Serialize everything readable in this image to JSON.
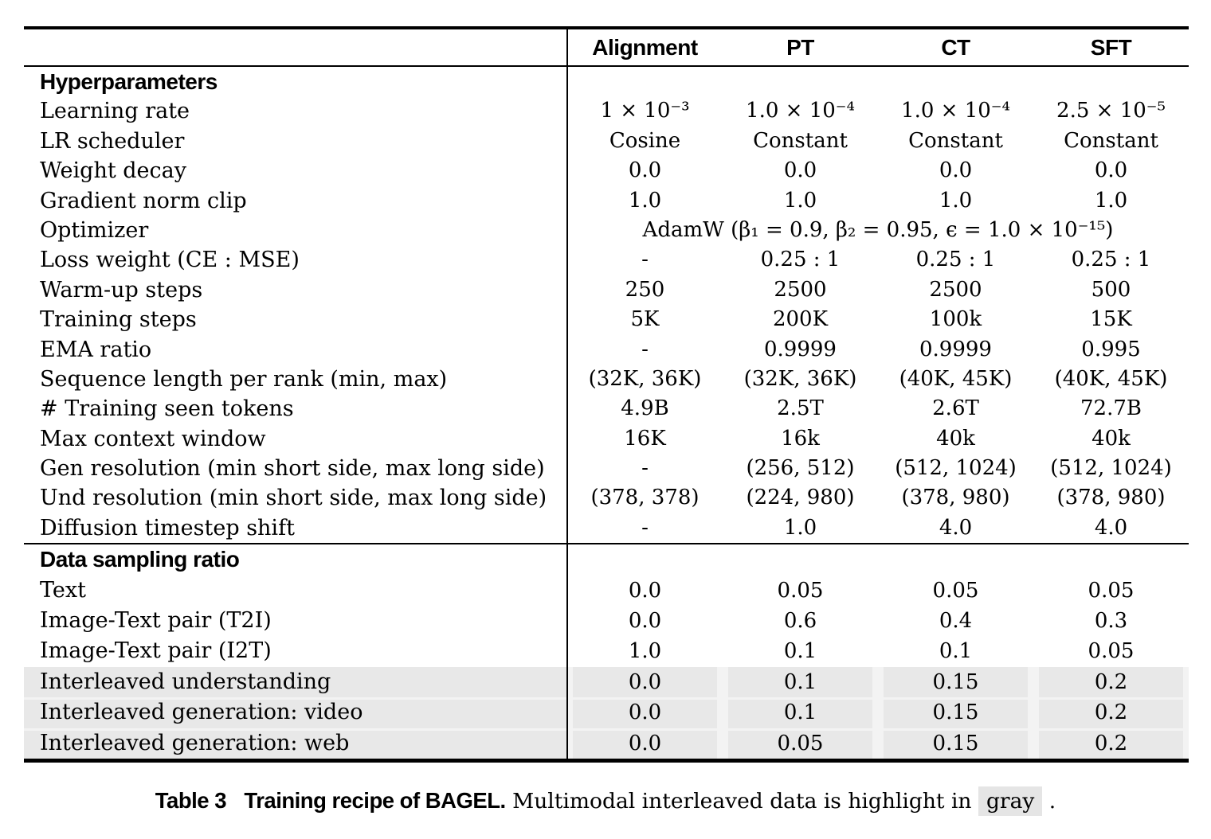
{
  "colors": {
    "highlight_row": "#e8e8e8",
    "row_gap": "#f3f3f3",
    "caption_highlight": "#e5e5e5",
    "rule": "#000000"
  },
  "table": {
    "columns": [
      "Alignment",
      "PT",
      "CT",
      "SFT"
    ],
    "sections": [
      {
        "title": "Hyperparameters",
        "rows": [
          {
            "label": "Learning rate",
            "values": [
              "1 × 10⁻³",
              "1.0 × 10⁻⁴",
              "1.0 × 10⁻⁴",
              "2.5 × 10⁻⁵"
            ]
          },
          {
            "label": "LR scheduler",
            "values": [
              "Cosine",
              "Constant",
              "Constant",
              "Constant"
            ]
          },
          {
            "label": "Weight decay",
            "values": [
              "0.0",
              "0.0",
              "0.0",
              "0.0"
            ]
          },
          {
            "label": "Gradient norm clip",
            "values": [
              "1.0",
              "1.0",
              "1.0",
              "1.0"
            ]
          },
          {
            "label": "Optimizer",
            "span": "AdamW (β₁ = 0.9, β₂ = 0.95, ϵ = 1.0 × 10⁻¹⁵)"
          },
          {
            "label": "Loss weight (CE : MSE)",
            "values": [
              "-",
              "0.25 : 1",
              "0.25 : 1",
              "0.25 : 1"
            ]
          },
          {
            "label": "Warm-up steps",
            "values": [
              "250",
              "2500",
              "2500",
              "500"
            ]
          },
          {
            "label": "Training steps",
            "values": [
              "5K",
              "200K",
              "100k",
              "15K"
            ]
          },
          {
            "label": "EMA ratio",
            "values": [
              "-",
              "0.9999",
              "0.9999",
              "0.995"
            ]
          },
          {
            "label": "Sequence length per rank (min, max)",
            "values": [
              "(32K, 36K)",
              "(32K, 36K)",
              "(40K, 45K)",
              "(40K, 45K)"
            ]
          },
          {
            "label": "# Training seen tokens",
            "values": [
              "4.9B",
              "2.5T",
              "2.6T",
              "72.7B"
            ]
          },
          {
            "label": "Max context window",
            "values": [
              "16K",
              "16k",
              "40k",
              "40k"
            ]
          },
          {
            "label": "Gen resolution (min short side, max long side)",
            "values": [
              "-",
              "(256, 512)",
              "(512, 1024)",
              "(512, 1024)"
            ]
          },
          {
            "label": "Und resolution (min short side, max long side)",
            "values": [
              "(378, 378)",
              "(224, 980)",
              "(378, 980)",
              "(378, 980)"
            ]
          },
          {
            "label": "Diffusion timestep shift",
            "values": [
              "-",
              "1.0",
              "4.0",
              "4.0"
            ]
          }
        ]
      },
      {
        "title": "Data sampling ratio",
        "rows": [
          {
            "label": "Text",
            "values": [
              "0.0",
              "0.05",
              "0.05",
              "0.05"
            ]
          },
          {
            "label": "Image-Text pair (T2I)",
            "values": [
              "0.0",
              "0.6",
              "0.4",
              "0.3"
            ]
          },
          {
            "label": "Image-Text pair (I2T)",
            "values": [
              "1.0",
              "0.1",
              "0.1",
              "0.05"
            ]
          },
          {
            "label": "Interleaved understanding",
            "values": [
              "0.0",
              "0.1",
              "0.15",
              "0.2"
            ],
            "highlight": true
          },
          {
            "label": "Interleaved generation: video",
            "values": [
              "0.0",
              "0.1",
              "0.15",
              "0.2"
            ],
            "highlight": true
          },
          {
            "label": "Interleaved generation: web",
            "values": [
              "0.0",
              "0.05",
              "0.15",
              "0.2"
            ],
            "highlight": true
          }
        ]
      }
    ]
  },
  "caption": {
    "label": "Table 3",
    "title": "Training recipe of BAGEL.",
    "text_before": "Multimodal interleaved data is highlight in",
    "highlighted_word": "gray",
    "text_after": "."
  }
}
